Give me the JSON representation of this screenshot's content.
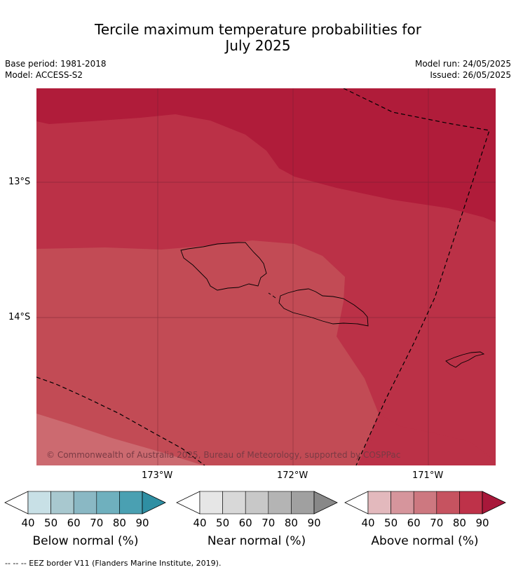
{
  "title_line1": "Tercile maximum temperature probabilities for",
  "title_line2": "July 2025",
  "base_period": "Base period: 1981-2018",
  "model": "Model: ACCESS-S2",
  "model_run": "Model run: 24/05/2025",
  "issued": "Issued: 26/05/2025",
  "lat_labels": [
    "13°S",
    "14°S"
  ],
  "lon_labels": [
    "173°W",
    "172°W",
    "171°W"
  ],
  "copyright": "© Commonwealth of Australia 2025, Bureau of Meteorology, supported by COSPPac",
  "colorbars": [
    {
      "title": "Below normal (%)",
      "ticks": [
        "40",
        "50",
        "60",
        "70",
        "80",
        "90"
      ],
      "colors": [
        "#c8e0e6",
        "#a8c8cf",
        "#8ab8c4",
        "#6fb0be",
        "#4aa0b2",
        "#2f8fa3"
      ]
    },
    {
      "title": "Near normal (%)",
      "ticks": [
        "40",
        "50",
        "60",
        "70",
        "80",
        "90"
      ],
      "colors": [
        "#e6e6e6",
        "#d8d8d8",
        "#c8c8c8",
        "#b4b4b4",
        "#a0a0a0",
        "#888888"
      ]
    },
    {
      "title": "Above normal (%)",
      "ticks": [
        "40",
        "50",
        "60",
        "70",
        "80",
        "90"
      ],
      "colors": [
        "#e3b9bd",
        "#d6959c",
        "#cd7880",
        "#c65360",
        "#be3249",
        "#a8183a"
      ]
    }
  ],
  "footer": "--  --  -- EEZ border V11 (Flanders Marine Institute, 2019).",
  "map_colors": {
    "80_90": "#b01c3a",
    "70_80": "#bb3147",
    "60_70": "#c24b55",
    "50_60": "#cc6a70"
  }
}
